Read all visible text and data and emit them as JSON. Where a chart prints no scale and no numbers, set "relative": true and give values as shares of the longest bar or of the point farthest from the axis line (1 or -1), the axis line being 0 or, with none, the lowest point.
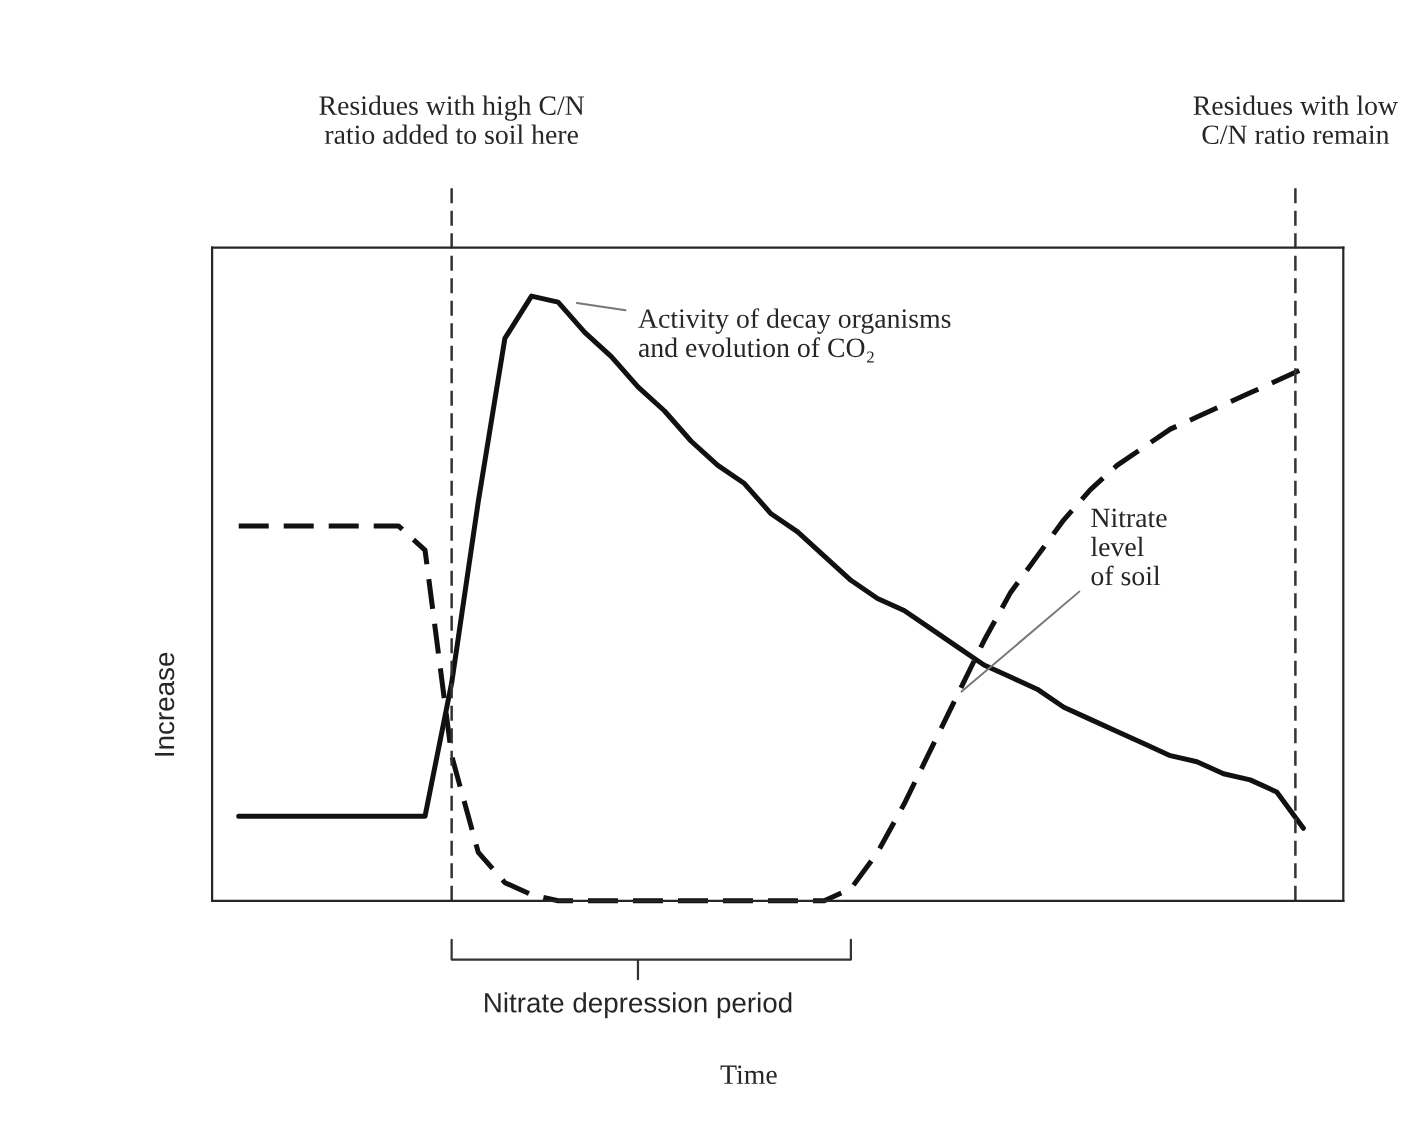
{
  "chart_data": {
    "type": "line",
    "relative": true,
    "ylabel": "Increase",
    "categories": [
      null,
      null,
      null,
      null,
      null,
      null,
      null,
      null,
      null,
      null,
      null,
      null,
      null,
      null,
      null,
      null,
      null,
      null,
      null,
      null,
      null,
      null,
      null,
      null,
      null,
      null,
      null,
      null,
      null,
      null,
      null,
      null,
      null,
      null,
      null,
      null,
      null,
      null,
      null,
      null,
      null
    ],
    "series": [
      {
        "name": "Activity of decay organisms\nand evolution of CO₂",
        "color": "#111111",
        "line_style": "solid",
        "values": [
          0.14,
          0.14,
          0.14,
          0.14,
          0.14,
          0.14,
          0.14,
          0.14,
          0.36,
          0.66,
          0.93,
          1.0,
          0.99,
          0.94,
          0.9,
          0.85,
          0.81,
          0.76,
          0.72,
          0.69,
          0.64,
          0.61,
          0.57,
          0.53,
          0.5,
          0.48,
          0.45,
          0.42,
          0.39,
          0.37,
          0.35,
          0.32,
          0.3,
          0.28,
          0.26,
          0.24,
          0.23,
          0.21,
          0.2,
          0.18,
          0.12
        ]
      },
      {
        "name": "Nitrate\nlevel\nof soil",
        "color": "#111111",
        "line_style": "dashed",
        "values": [
          0.62,
          0.62,
          0.62,
          0.62,
          0.62,
          0.62,
          0.62,
          0.58,
          0.24,
          0.08,
          0.03,
          0.01,
          0,
          0,
          0,
          0,
          0,
          0,
          0,
          0,
          0,
          0,
          0,
          0.02,
          0.08,
          0.16,
          0.25,
          0.34,
          0.43,
          0.51,
          0.57,
          0.63,
          0.68,
          0.72,
          0.75,
          0.78,
          0.8,
          0.82,
          0.84,
          0.86,
          0.88
        ]
      }
    ],
    "annotations": [
      "Residues with high C/N\nratio added to soil here",
      "Residues with low\nC/N ratio remain",
      "Nitrate depression period",
      "Time"
    ],
    "legend": false
  }
}
